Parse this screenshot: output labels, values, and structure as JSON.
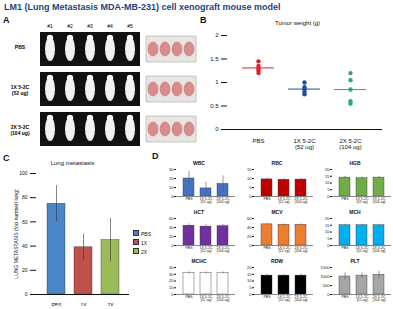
{
  "title": "LM1 (Lung Metastasis MDA-MB-231) cell xenograft mouse model",
  "panel_a": {
    "label": "A",
    "columns": [
      "#1",
      "#2",
      "#3",
      "#4",
      "#5"
    ],
    "rows": [
      "PBS",
      "1X 5-2C (52 ug)",
      "2X 5-2C (104 ug)"
    ]
  },
  "chart_data": [
    {
      "type": "scatter",
      "title": "Tumor weight (g)",
      "annotations": [
        "B"
      ],
      "categories": [
        "PBS",
        "1X 5-2C (52 ug)",
        "2X 5-2C (104 ug)"
      ],
      "values": [
        [
          1.45,
          1.35,
          1.3,
          1.25,
          1.2
        ],
        [
          1.0,
          0.9,
          0.85,
          0.8,
          0.75
        ],
        [
          1.2,
          1.05,
          0.85,
          0.6,
          0.55
        ]
      ],
      "means": [
        1.31,
        0.86,
        0.85
      ],
      "colors": [
        "#e0202a",
        "#1f4e9c",
        "#2ca87f"
      ],
      "marker": "circle",
      "ylim": [
        0,
        2
      ],
      "yticks": [
        0,
        0.5,
        1,
        1.5,
        2
      ]
    },
    {
      "type": "bar",
      "title": "Lung metastasis",
      "annotations": [
        "C"
      ],
      "y_label": "LUNG METASTASIS (foci number/ lung)",
      "categories": [
        "PBS",
        "1X",
        "2X"
      ],
      "values": [
        75,
        39,
        45
      ],
      "errors": [
        15,
        11,
        18
      ],
      "colors": [
        "#4a86c8",
        "#c0504d",
        "#9bbb59"
      ],
      "legend": "right",
      "ylim": [
        0,
        100
      ],
      "yticks": [
        0,
        20,
        40,
        60,
        80,
        100
      ]
    },
    {
      "type": "bar",
      "title": "WBC",
      "annotations": [
        "D"
      ],
      "categories": [
        "PBS",
        "1X 5-2C (52 ug)",
        "2X 5-2C (104 ug)"
      ],
      "values": [
        20,
        9,
        14
      ],
      "errors": [
        8,
        7,
        9
      ],
      "color": "#4472c4",
      "ylim": [
        0,
        30
      ],
      "yticks": [
        0,
        10,
        20,
        30
      ]
    },
    {
      "type": "bar",
      "title": "RBC",
      "categories": [
        "PBS",
        "1X 5-2C (52 ug)",
        "2X 5-2C (104 ug)"
      ],
      "values": [
        9.5,
        9.3,
        9.4
      ],
      "errors": [
        0.8,
        0.7,
        0.8
      ],
      "color": "#c00000",
      "ylim": [
        0,
        15
      ],
      "yticks": [
        0,
        5,
        10,
        15
      ]
    },
    {
      "type": "bar",
      "title": "HGB",
      "categories": [
        "PBS",
        "1X 5-2C (52 ug)",
        "2X 5-2C (104 ug)"
      ],
      "values": [
        14,
        13.5,
        14
      ],
      "errors": [
        1,
        1,
        1
      ],
      "color": "#70ad47",
      "ylim": [
        0,
        20
      ],
      "yticks": [
        0,
        5,
        10,
        15,
        20
      ]
    },
    {
      "type": "bar",
      "title": "HCT",
      "categories": [
        "PBS",
        "1X 5-2C (52 ug)",
        "2X 5-2C (104 ug)"
      ],
      "values": [
        44,
        42,
        43
      ],
      "errors": [
        4,
        4,
        4
      ],
      "color": "#7030a0",
      "ylim": [
        0,
        60
      ],
      "yticks": [
        0,
        20,
        40,
        60
      ]
    },
    {
      "type": "bar",
      "title": "MCV",
      "categories": [
        "PBS",
        "1X 5-2C (52 ug)",
        "2X 5-2C (104 ug)"
      ],
      "values": [
        47,
        46,
        46
      ],
      "errors": [
        2,
        2,
        2
      ],
      "color": "#ed7d31",
      "ylim": [
        0,
        60
      ],
      "yticks": [
        0,
        20,
        40,
        60
      ]
    },
    {
      "type": "bar",
      "title": "MCH",
      "categories": [
        "PBS",
        "1X 5-2C (52 ug)",
        "2X 5-2C (104 ug)"
      ],
      "values": [
        15,
        15,
        15
      ],
      "errors": [
        0.8,
        0.8,
        0.8
      ],
      "color": "#00b0f0",
      "ylim": [
        0,
        20
      ],
      "yticks": [
        0,
        5,
        10,
        15,
        20
      ]
    },
    {
      "type": "bar",
      "title": "MCHC",
      "categories": [
        "PBS",
        "1X 5-2C (52 ug)",
        "2X 5-2C (104 ug)"
      ],
      "values": [
        32,
        32,
        32
      ],
      "errors": [
        1.5,
        1.5,
        1.5
      ],
      "color": "#ffffff",
      "ylim": [
        0,
        40
      ],
      "yticks": [
        0,
        10,
        20,
        30,
        40
      ]
    },
    {
      "type": "bar",
      "title": "RDW",
      "categories": [
        "PBS",
        "1X 5-2C (52 ug)",
        "2X 5-2C (104 ug)"
      ],
      "values": [
        14,
        14,
        14
      ],
      "errors": [
        1,
        1,
        1
      ],
      "color": "#000000",
      "ylim": [
        0,
        20
      ],
      "yticks": [
        0,
        5,
        10,
        15,
        20
      ]
    },
    {
      "type": "bar",
      "title": "PLT",
      "categories": [
        "PBS",
        "1X 5-2C (52 ug)",
        "2X 5-2C (104 ug)"
      ],
      "values": [
        1000,
        1050,
        1100
      ],
      "errors": [
        200,
        150,
        200
      ],
      "color": "#a6a6a6",
      "ylim": [
        0,
        1500
      ],
      "yticks": [
        0,
        500,
        1000,
        1500
      ]
    }
  ]
}
